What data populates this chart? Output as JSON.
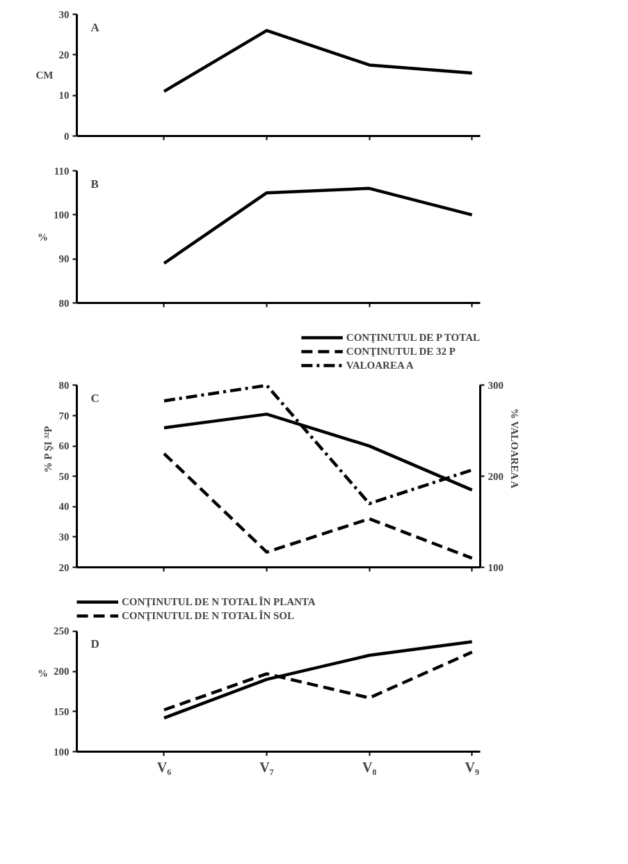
{
  "chart_data": [
    {
      "type": "line",
      "title": "A",
      "ylabel": "CM",
      "categories": [
        null,
        null,
        null,
        null
      ],
      "ylim": [
        0,
        30
      ],
      "yticks": [
        0,
        10,
        20,
        30
      ],
      "tick_labels": "y",
      "grid": false,
      "legend": false,
      "line_style": "solid",
      "series": [
        {
          "color": "#000000",
          "values": [
            11,
            26,
            17.5,
            15.5
          ]
        }
      ]
    },
    {
      "type": "line",
      "title": "B",
      "ylabel": "%",
      "categories": [
        null,
        null,
        null,
        null
      ],
      "ylim": [
        80,
        110
      ],
      "yticks": [
        80,
        90,
        100,
        110
      ],
      "tick_labels": "y",
      "grid": false,
      "legend": false,
      "line_style": "solid",
      "series": [
        {
          "color": "#000000",
          "values": [
            89,
            105,
            106,
            100
          ]
        }
      ]
    },
    {
      "type": "line",
      "title": "C",
      "ylabel": "% P ŞI ³²P",
      "y2label": "% VALOAREA A",
      "categories": [
        null,
        null,
        null,
        null
      ],
      "ylim": [
        20,
        80
      ],
      "yticks": [
        20,
        30,
        40,
        50,
        60,
        70,
        80
      ],
      "y2lim": [
        100,
        300
      ],
      "y2ticks": [
        100,
        200,
        300
      ],
      "tick_labels": "y",
      "grid": false,
      "legend": "top right",
      "series": [
        {
          "name": "CONŢINUTUL DE P TOTAL",
          "color": "#000000",
          "line_style": "solid",
          "values": [
            66,
            70.5,
            60,
            45.5
          ]
        },
        {
          "name": "CONŢINUTUL DE 32 P",
          "color": "#000000",
          "line_style": "dashed",
          "values": [
            57.5,
            25,
            36,
            23
          ]
        },
        {
          "name": "VALOAREA A",
          "color": "#000000",
          "line_style": "dashdot",
          "axis": "y2",
          "values": [
            283,
            300,
            170,
            207
          ]
        }
      ]
    },
    {
      "type": "line",
      "title": "D",
      "ylabel": "%",
      "categories": [
        "V₆",
        "V₇",
        "V₈",
        "V₉"
      ],
      "ylim": [
        100,
        250
      ],
      "yticks": [
        100,
        150,
        200,
        250
      ],
      "grid": false,
      "legend": "top",
      "series": [
        {
          "name": "CONŢINUTUL DE N TOTAL ÎN PLANTA",
          "color": "#000000",
          "line_style": "solid",
          "values": [
            142,
            190,
            220,
            237
          ]
        },
        {
          "name": "CONŢINUTUL DE N TOTAL ÎN SOL",
          "color": "#000000",
          "line_style": "dashed",
          "values": [
            152,
            197,
            167,
            224
          ]
        }
      ]
    }
  ]
}
